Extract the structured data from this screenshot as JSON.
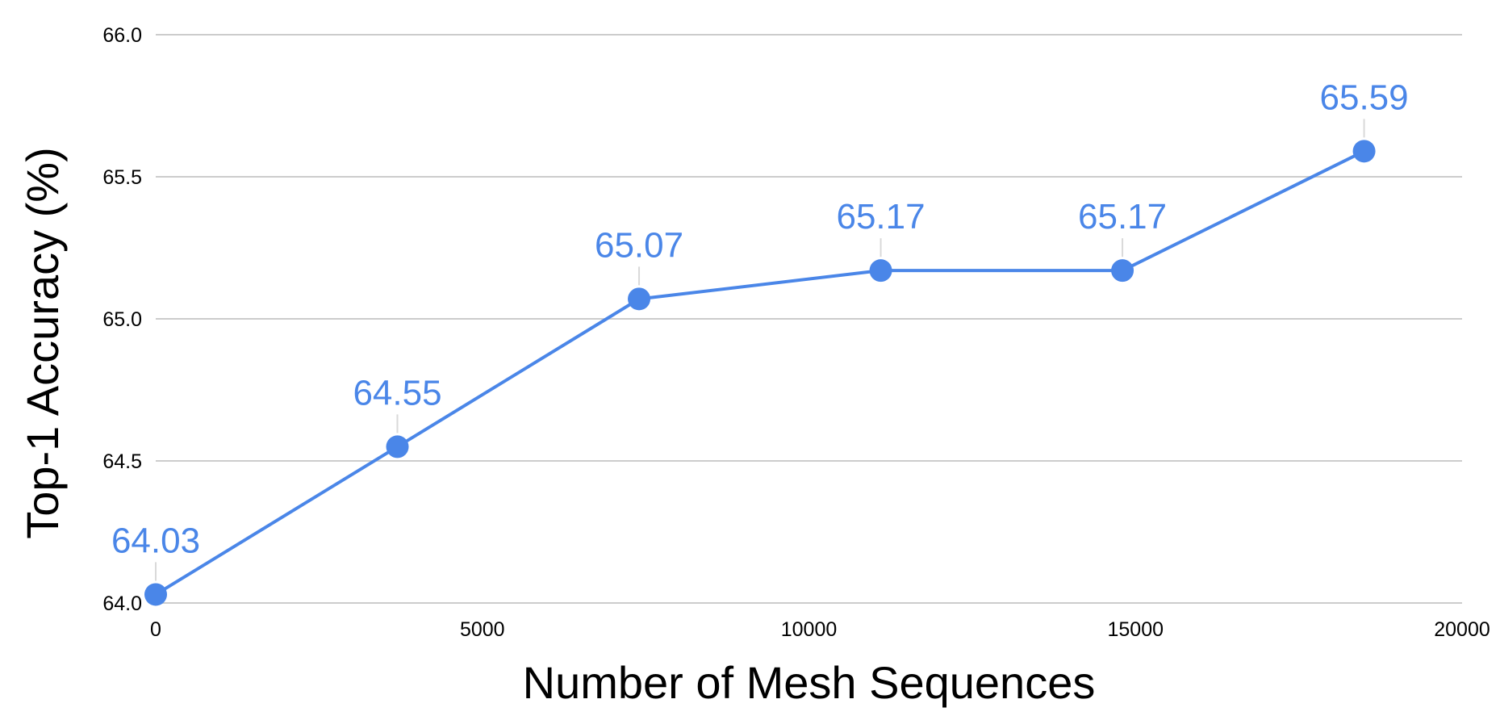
{
  "chart_data": {
    "type": "line",
    "title": "",
    "xlabel": "Number of Mesh Sequences",
    "ylabel": "Top-1 Accuracy (%)",
    "xlim": [
      0,
      20000
    ],
    "ylim": [
      64.0,
      66.0
    ],
    "x_ticks": [
      "0",
      "5000",
      "10000",
      "15000",
      "20000"
    ],
    "y_ticks": [
      "64.0",
      "64.5",
      "65.0",
      "65.5",
      "66.0"
    ],
    "grid": true,
    "legend": "none",
    "series": [
      {
        "color": "#4a86e8",
        "x": [
          0,
          3700,
          7400,
          11100,
          14800,
          18500
        ],
        "y": [
          64.03,
          64.55,
          65.07,
          65.17,
          65.17,
          65.59
        ],
        "labels": [
          "64.03",
          "64.55",
          "65.07",
          "65.17",
          "65.17",
          "65.59"
        ]
      }
    ]
  }
}
